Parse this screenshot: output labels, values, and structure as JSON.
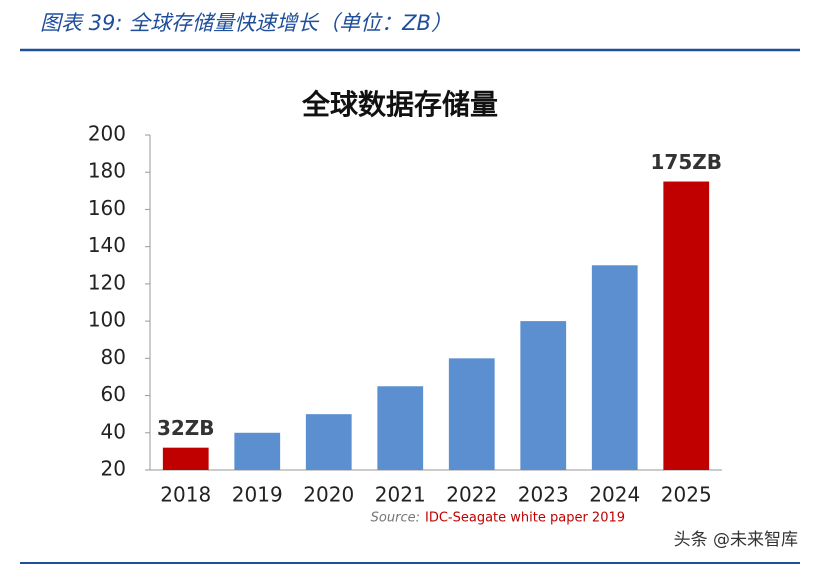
{
  "header": "图表 39: 全球存储量快速增长（单位：ZB）",
  "watermark": "头条 @未来智库",
  "chart_data": {
    "type": "bar",
    "title": "全球数据存储量",
    "categories": [
      "2018",
      "2019",
      "2020",
      "2021",
      "2022",
      "2023",
      "2024",
      "2025"
    ],
    "values": [
      32,
      40,
      50,
      65,
      80,
      100,
      130,
      175
    ],
    "value_labels": [
      "32ZB",
      null,
      null,
      null,
      null,
      null,
      null,
      "175ZB"
    ],
    "colors": [
      "#c00000",
      "#5b8fd0",
      "#5b8fd0",
      "#5b8fd0",
      "#5b8fd0",
      "#5b8fd0",
      "#5b8fd0",
      "#c00000"
    ],
    "ylim": [
      20,
      200
    ],
    "yticks": [
      20,
      40,
      60,
      80,
      100,
      120,
      140,
      160,
      180,
      200
    ],
    "grid": false,
    "source_label": "Source:",
    "source": "IDC-Seagate white paper 2019"
  }
}
